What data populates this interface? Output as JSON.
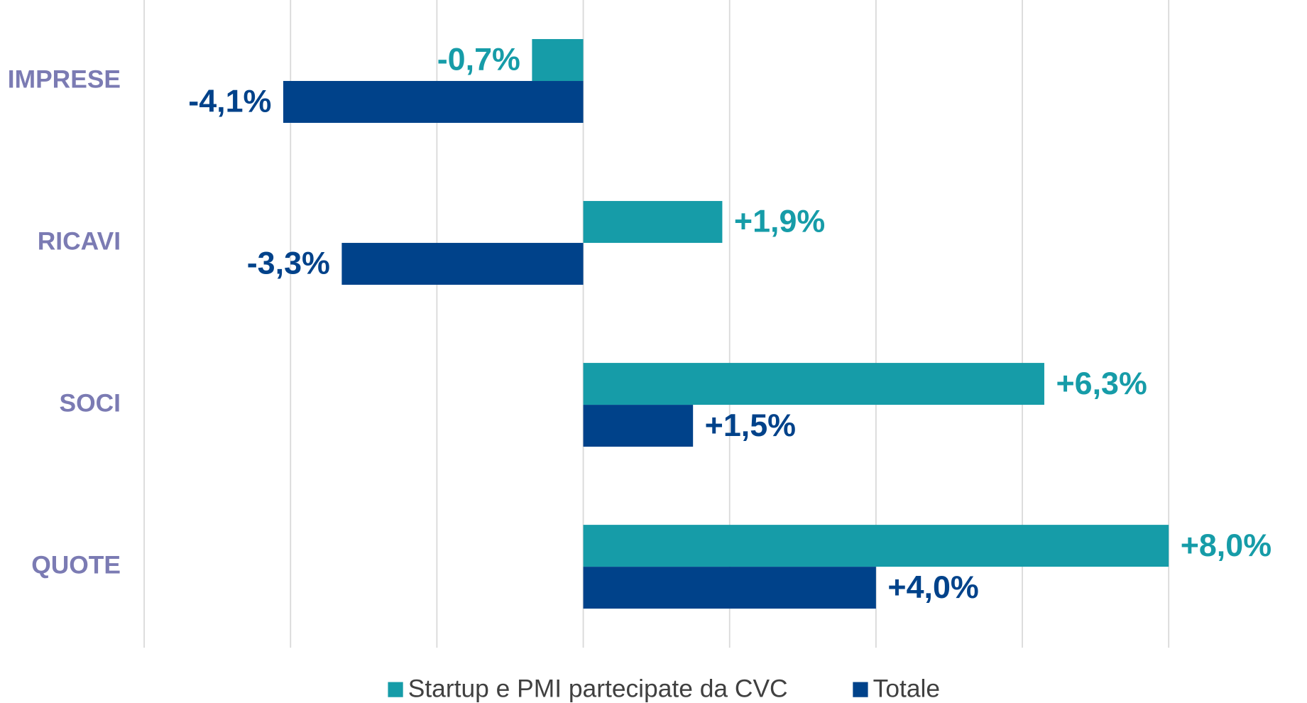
{
  "chart_data": {
    "type": "hbar",
    "categories": [
      "IMPRESE",
      "RICAVI",
      "SOCI",
      "QUOTE"
    ],
    "series": [
      {
        "name": "Startup e PMI partecipate da CVC",
        "color": "#169ca8",
        "values": [
          -0.7,
          1.9,
          6.3,
          8.0
        ],
        "value_labels": [
          "-0,7%",
          "+1,9%",
          "+6,3%",
          "+8,0%"
        ]
      },
      {
        "name": "Totale",
        "color": "#00428a",
        "values": [
          -4.1,
          -3.3,
          1.5,
          4.0
        ],
        "value_labels": [
          "-4,1%",
          "-3,3%",
          "+1,5%",
          "+4,0%"
        ]
      }
    ],
    "xlim": [
      -6,
      8
    ],
    "xticks": [
      -6,
      -4,
      -2,
      0,
      2,
      4,
      6,
      8
    ],
    "grid": true,
    "legend": "bottom"
  }
}
